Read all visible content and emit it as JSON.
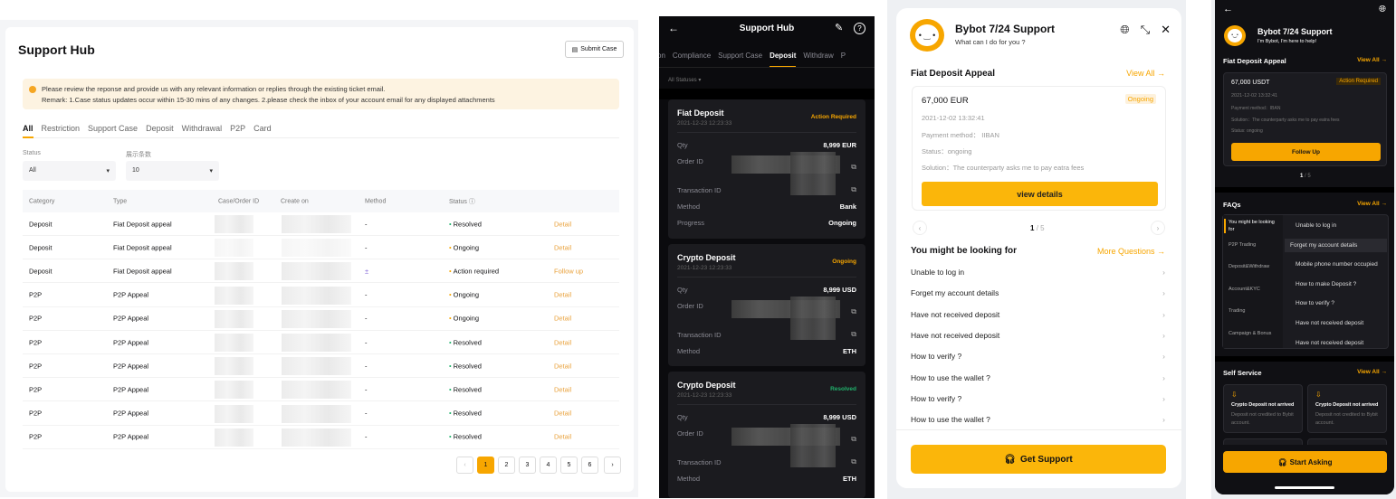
{
  "desktop": {
    "title": "Support Hub",
    "submit_case": "Submit Case",
    "alert_line1": "Please review the reponse and provide us with any relevant information or replies through the existing ticket email.",
    "alert_line2": "Remark: 1.Case status updates occur within 15-30 mins of any changes. 2.please check the inbox of your account email for any displayed attachments",
    "tabs": [
      "All",
      "Restriction",
      "Support Case",
      "Deposit",
      "Withdrawal",
      "P2P",
      "Card"
    ],
    "filter_status_label": "Status",
    "filter_status_value": "All",
    "filter_count_label": "展示条数",
    "filter_count_value": "10",
    "columns": [
      "Category",
      "Type",
      "Case/Order ID",
      "Create on",
      "Method",
      "Status"
    ],
    "rows": [
      {
        "category": "Deposit",
        "type": "Fiat Deposit appeal",
        "method": "-",
        "status": "Resolved",
        "action": "Detail"
      },
      {
        "category": "Deposit",
        "type": "Fiat Deposit appeal",
        "method": "-",
        "status": "Ongoing",
        "action": "Detail"
      },
      {
        "category": "Deposit",
        "type": "Fiat Deposit appeal",
        "method": "±",
        "status": "Action required",
        "action": "Follow up"
      },
      {
        "category": "P2P",
        "type": "P2P Appeal",
        "method": "-",
        "status": "Ongoing",
        "action": "Detail"
      },
      {
        "category": "P2P",
        "type": "P2P Appeal",
        "method": "-",
        "status": "Ongoing",
        "action": "Detail"
      },
      {
        "category": "P2P",
        "type": "P2P Appeal",
        "method": "-",
        "status": "Resolved",
        "action": "Detail"
      },
      {
        "category": "P2P",
        "type": "P2P Appeal",
        "method": "-",
        "status": "Resolved",
        "action": "Detail"
      },
      {
        "category": "P2P",
        "type": "P2P Appeal",
        "method": "-",
        "status": "Resolved",
        "action": "Detail"
      },
      {
        "category": "P2P",
        "type": "P2P Appeal",
        "method": "-",
        "status": "Resolved",
        "action": "Detail"
      },
      {
        "category": "P2P",
        "type": "P2P Appeal",
        "method": "-",
        "status": "Resolved",
        "action": "Detail"
      }
    ],
    "pages": [
      "1",
      "2",
      "3",
      "4",
      "5",
      "6"
    ],
    "current_page": "1"
  },
  "mobile_dark": {
    "title": "Support Hub",
    "tabs": [
      "tion",
      "Compliance",
      "Support Case",
      "Deposit",
      "Withdraw",
      "P"
    ],
    "filter": "All Statuses ▾",
    "cards": [
      {
        "title": "Fiat Deposit",
        "date": "2021-12-23 12:23:33",
        "status": "Action Required",
        "qty_label": "Qty",
        "qty": "8,999 EUR",
        "order_label": "Order ID",
        "tx_label": "Transaction ID",
        "method_label": "Method",
        "method": "Bank",
        "progress_label": "Progress",
        "progress": "Ongoing"
      },
      {
        "title": "Crypto Deposit",
        "date": "2021-12-23 12:23:33",
        "status": "Ongoing",
        "qty_label": "Qty",
        "qty": "8,999 USD",
        "order_label": "Order ID",
        "tx_label": "Transaction ID",
        "method_label": "Method",
        "method": "ETH"
      },
      {
        "title": "Crypto Deposit",
        "date": "2021-12-23 12:23:33",
        "status": "Resolved",
        "qty_label": "Qty",
        "qty": "8,999 USD",
        "order_label": "Order ID",
        "tx_label": "Transaction ID",
        "method_label": "Method",
        "method": "ETH"
      }
    ]
  },
  "bot_light": {
    "title": "Bybot 7/24 Support",
    "subtitle": "What can I do for you ?",
    "section": "Fiat Deposit Appeal",
    "view_all": "View All →",
    "card": {
      "amount": "67,000 EUR",
      "badge": "Ongoing",
      "date": "2021-12-02 13:32:41",
      "payment": "Payment method： IIBAN",
      "status": "Status：ongoing",
      "solution": "Solution：The counterparty asks me to pay eatra fees",
      "button": "view details"
    },
    "pager": "1",
    "pager_total": "/ 5",
    "looking_title": "You might be looking for",
    "more": "More Questions →",
    "questions": [
      "Unable to log in",
      "Forget my account details",
      "Have not received deposit",
      "Have not received deposit",
      "How to verify ?",
      "How to use the wallet ?",
      "How to verify ?",
      "How to use the wallet ?"
    ],
    "get_support": "Get Support"
  },
  "bot_dark": {
    "title": "Bybot 7/24 Support",
    "subtitle": "I'm Bybot, I'm here to help!",
    "section": "Fiat Deposit Appeal",
    "view_all": "View All →",
    "card": {
      "amount": "67,000 USDT",
      "badge": "Action Required",
      "date": "2021-12-02 13:32:41",
      "payment": "Payment method：IBAN",
      "solution": "Solution：The counterparty asks me to pay eatra fees",
      "status": "Status: ongoing",
      "button": "Follow Up"
    },
    "pager": "1",
    "pager_total": "/ 5",
    "faqs_title": "FAQs",
    "faqs_view_all": "View All →",
    "faq_categories": [
      "You might be looking for",
      "P2P Trading",
      "Deposit&Withdraw",
      "Account&KYC",
      "Trading",
      "Campaign & Bonus"
    ],
    "faq_questions": [
      "Unable to log in",
      "Forget my account details",
      "Mobile phone number occupied",
      "How to make Deposit ?",
      "How to verify ?",
      "Have not received deposit",
      "Have not received deposit"
    ],
    "self_service_title": "Self Service",
    "self_service_view_all": "View All →",
    "self_service": [
      {
        "title": "Crypto Deposit not arrived",
        "desc": "Deposit not credited to Bybit account."
      },
      {
        "title": "Crypto Deposit not arrived",
        "desc": "Deposit not credited to Bybit account."
      }
    ],
    "start_asking": "Start Asking"
  },
  "colors": {
    "accent": "#f7a600",
    "resolved": "#20b26c",
    "dark_bg": "#101014"
  }
}
